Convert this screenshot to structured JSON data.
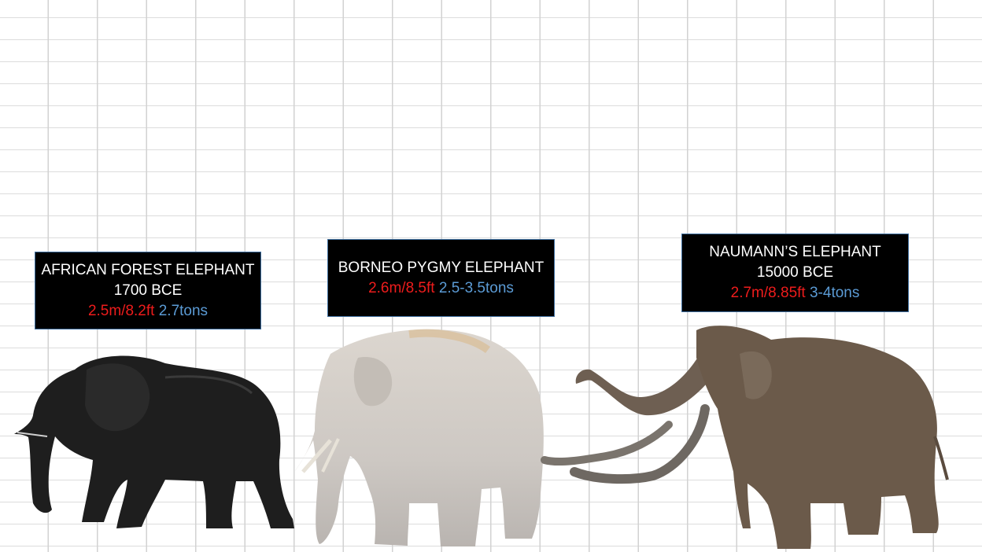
{
  "animals": [
    {
      "name": "AFRICAN FOREST ELEPHANT",
      "date": "1700 BCE",
      "height": "2.5m/8.2ft",
      "weight": "2.7tons",
      "color": "#1c1c1c",
      "icon": "african-forest-elephant-silhouette"
    },
    {
      "name": "BORNEO PYGMY ELEPHANT",
      "height": "2.6m/8.5ft",
      "weight": "2.5-3.5tons",
      "color": "#cfcbc6",
      "icon": "borneo-pygmy-elephant-image"
    },
    {
      "name": "NAUMANN’S ELEPHANT",
      "date": "15000 BCE",
      "height": "2.7m/8.85ft",
      "weight": "3-4tons",
      "color": "#6b5a4a",
      "icon": "naumann-elephant-image"
    }
  ],
  "colors": {
    "height_text": "#ee1c1c",
    "weight_text": "#5b9bd5",
    "box_border": "#3f6fa0",
    "grid": "#d2d2d2"
  }
}
